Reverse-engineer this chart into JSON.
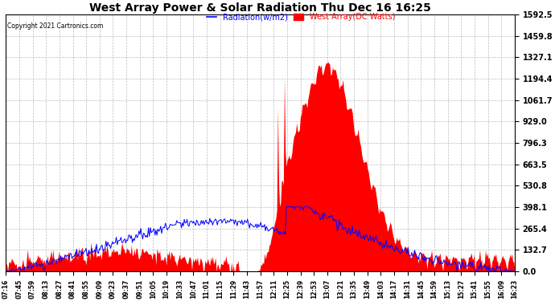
{
  "title": "West Array Power & Solar Radiation Thu Dec 16 16:25",
  "copyright": "Copyright 2021 Cartronics.com",
  "legend_radiation": "Radiation(w/m2)",
  "legend_west": "West Array(DC Watts)",
  "yticks": [
    0.0,
    132.7,
    265.4,
    398.1,
    530.8,
    663.5,
    796.3,
    929.0,
    1061.7,
    1194.4,
    1327.1,
    1459.8,
    1592.5
  ],
  "ymax": 1592.5,
  "ymin": 0.0,
  "bg_color": "#ffffff",
  "plot_bg_color": "#ffffff",
  "grid_color": "#aaaaaa",
  "bar_color": "#ff0000",
  "line_color": "#0000ff",
  "title_color": "#000000",
  "copyright_color": "#000000",
  "radiation_legend_color": "#0000ff",
  "west_legend_color": "#ff0000",
  "xtick_labels": [
    "07:16",
    "07:45",
    "07:59",
    "08:13",
    "08:27",
    "08:41",
    "08:55",
    "09:09",
    "09:23",
    "09:37",
    "09:51",
    "10:05",
    "10:19",
    "10:33",
    "10:47",
    "11:01",
    "11:15",
    "11:29",
    "11:43",
    "11:57",
    "12:11",
    "12:25",
    "12:39",
    "12:53",
    "13:07",
    "13:21",
    "13:35",
    "13:49",
    "14:03",
    "14:17",
    "14:31",
    "14:45",
    "14:59",
    "15:13",
    "15:27",
    "15:41",
    "15:55",
    "16:09",
    "16:23"
  ]
}
